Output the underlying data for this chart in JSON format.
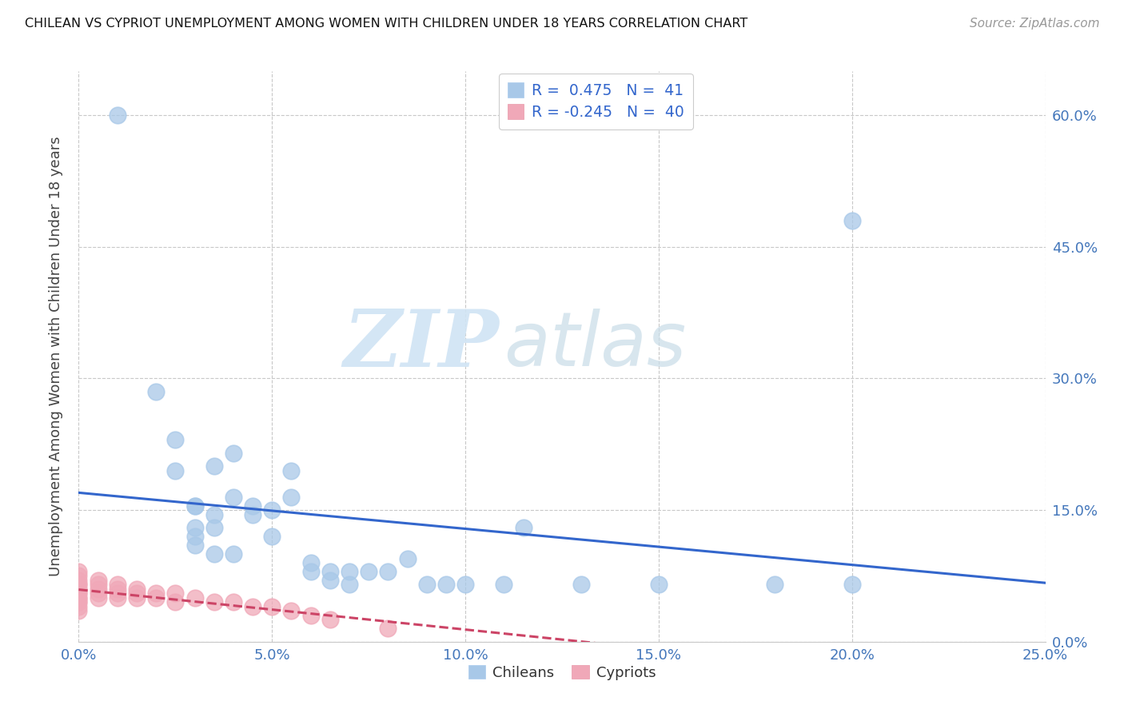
{
  "title": "CHILEAN VS CYPRIOT UNEMPLOYMENT AMONG WOMEN WITH CHILDREN UNDER 18 YEARS CORRELATION CHART",
  "source": "Source: ZipAtlas.com",
  "ylabel": "Unemployment Among Women with Children Under 18 years",
  "xlim": [
    0.0,
    0.25
  ],
  "ylim": [
    0.0,
    0.65
  ],
  "watermark_zip": "ZIP",
  "watermark_atlas": "atlas",
  "background_color": "#ffffff",
  "grid_color": "#c8c8c8",
  "chilean_color": "#a8c8e8",
  "cypriot_color": "#f0a8b8",
  "chilean_line_color": "#3366cc",
  "cypriot_line_color": "#cc4466",
  "chilean_R": 0.475,
  "chilean_N": 41,
  "cypriot_R": -0.245,
  "cypriot_N": 40,
  "chilean_scatter_x": [
    0.01,
    0.02,
    0.025,
    0.025,
    0.03,
    0.03,
    0.03,
    0.03,
    0.03,
    0.035,
    0.035,
    0.035,
    0.04,
    0.04,
    0.04,
    0.045,
    0.045,
    0.05,
    0.05,
    0.055,
    0.055,
    0.06,
    0.06,
    0.065,
    0.065,
    0.07,
    0.07,
    0.075,
    0.08,
    0.085,
    0.09,
    0.095,
    0.1,
    0.11,
    0.115,
    0.13,
    0.15,
    0.18,
    0.2,
    0.2,
    0.035
  ],
  "chilean_scatter_y": [
    0.6,
    0.285,
    0.23,
    0.195,
    0.155,
    0.155,
    0.13,
    0.12,
    0.11,
    0.145,
    0.13,
    0.1,
    0.215,
    0.165,
    0.1,
    0.155,
    0.145,
    0.15,
    0.12,
    0.195,
    0.165,
    0.09,
    0.08,
    0.08,
    0.07,
    0.08,
    0.065,
    0.08,
    0.08,
    0.095,
    0.065,
    0.065,
    0.065,
    0.065,
    0.13,
    0.065,
    0.065,
    0.065,
    0.065,
    0.48,
    0.2
  ],
  "cypriot_scatter_x": [
    0.0,
    0.0,
    0.0,
    0.0,
    0.0,
    0.0,
    0.0,
    0.0,
    0.0,
    0.0,
    0.0,
    0.0,
    0.0,
    0.0,
    0.0,
    0.005,
    0.005,
    0.005,
    0.005,
    0.005,
    0.01,
    0.01,
    0.01,
    0.01,
    0.015,
    0.015,
    0.015,
    0.02,
    0.02,
    0.025,
    0.025,
    0.03,
    0.035,
    0.04,
    0.045,
    0.05,
    0.055,
    0.06,
    0.065,
    0.08
  ],
  "cypriot_scatter_y": [
    0.08,
    0.075,
    0.07,
    0.065,
    0.065,
    0.06,
    0.06,
    0.055,
    0.055,
    0.05,
    0.05,
    0.045,
    0.045,
    0.04,
    0.035,
    0.07,
    0.065,
    0.06,
    0.055,
    0.05,
    0.065,
    0.06,
    0.055,
    0.05,
    0.06,
    0.055,
    0.05,
    0.055,
    0.05,
    0.055,
    0.045,
    0.05,
    0.045,
    0.045,
    0.04,
    0.04,
    0.035,
    0.03,
    0.025,
    0.015
  ]
}
